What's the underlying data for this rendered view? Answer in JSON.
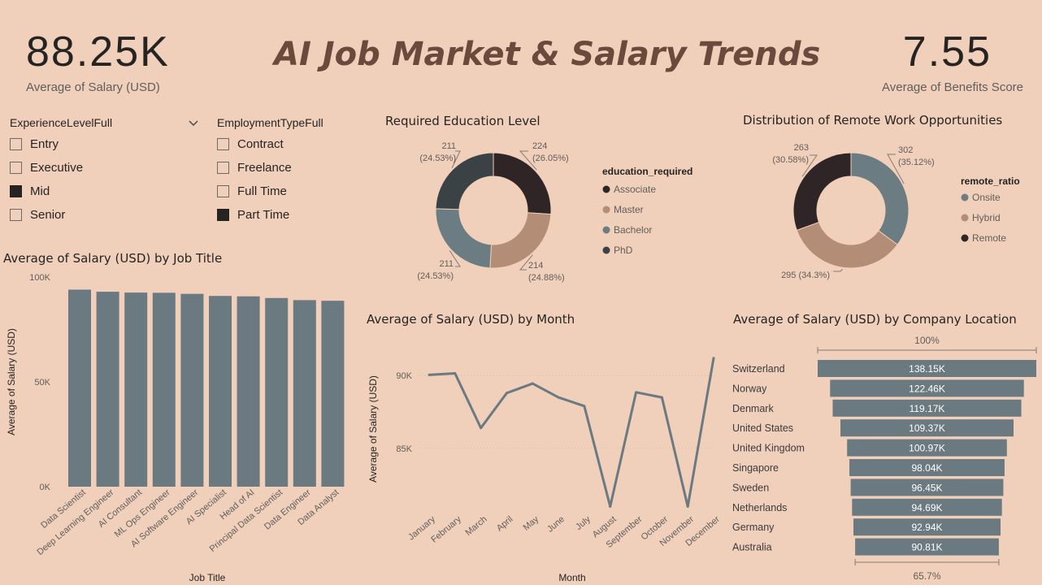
{
  "kpis": {
    "salary": {
      "value": "88.25K",
      "label": "Average of Salary (USD)"
    },
    "benefits": {
      "value": "7.55",
      "label": "Average of Benefits Score"
    }
  },
  "title": "AI Job Market & Salary Trends",
  "slicers": {
    "experience": {
      "title": "ExperienceLevelFull",
      "items": [
        {
          "label": "Entry",
          "checked": false
        },
        {
          "label": "Executive",
          "checked": false
        },
        {
          "label": "Mid",
          "checked": true
        },
        {
          "label": "Senior",
          "checked": false
        }
      ]
    },
    "employment": {
      "title": "EmploymentTypeFull",
      "items": [
        {
          "label": "Contract",
          "checked": false
        },
        {
          "label": "Freelance",
          "checked": false
        },
        {
          "label": "Full Time",
          "checked": false
        },
        {
          "label": "Part Time",
          "checked": true
        }
      ]
    }
  },
  "colors": {
    "background": "#f0cfbb",
    "dark": "#2f2526",
    "tan": "#b38d75",
    "slate": "#6b7c82",
    "charcoal": "#3b4245",
    "bar": "#6b7a80"
  },
  "chart_data": [
    {
      "id": "education",
      "type": "pie",
      "title": "Required Education Level",
      "legend_title": "education_required",
      "legend_position": "right",
      "categories": [
        "Associate",
        "Master",
        "Bachelor",
        "PhD"
      ],
      "values": [
        224,
        214,
        211,
        211
      ],
      "labels": [
        [
          "224",
          "(26.05%)"
        ],
        [
          "214",
          "(24.88%)"
        ],
        [
          "211",
          "(24.53%)"
        ],
        [
          "211",
          "(24.53%)"
        ]
      ]
    },
    {
      "id": "remote",
      "type": "pie",
      "title": "Distribution of Remote Work Opportunities",
      "legend_title": "remote_ratio",
      "legend_position": "right",
      "categories": [
        "Onsite",
        "Hybrid",
        "Remote"
      ],
      "values": [
        302,
        295,
        263
      ],
      "labels": [
        [
          "302",
          "(35.12%)"
        ],
        [
          "295 (34.3%)"
        ],
        [
          "263",
          "(30.58%)"
        ]
      ]
    },
    {
      "id": "jobtitle",
      "type": "bar",
      "title": "Average of Salary (USD) by Job Title",
      "xlabel": "Job Title",
      "ylabel": "Average of Salary (USD)",
      "ylim": [
        0,
        100000
      ],
      "yticks": [
        "0K",
        "50K",
        "100K"
      ],
      "categories": [
        "Data Scientist",
        "Deep Learning Engineer",
        "AI Consultant",
        "ML Ops Engineer",
        "AI Software Engineer",
        "AI Specialist",
        "Head of AI",
        "Principal Data Scientist",
        "Data Engineer",
        "Data Analyst"
      ],
      "values": [
        94000,
        93000,
        92600,
        92500,
        92000,
        91000,
        90800,
        90000,
        89000,
        88700
      ],
      "grid": false
    },
    {
      "id": "month",
      "type": "line",
      "title": "Average of Salary (USD) by Month",
      "xlabel": "Month",
      "ylabel": "Average of Salary (USD)",
      "ylim": [
        80800,
        91800
      ],
      "yticks": [
        "85K",
        "90K"
      ],
      "categories": [
        "January",
        "February",
        "March",
        "April",
        "May",
        "June",
        "July",
        "August",
        "September",
        "October",
        "November",
        "December"
      ],
      "values": [
        90050,
        90150,
        86400,
        88800,
        89450,
        88500,
        87900,
        81000,
        88850,
        88500,
        81000,
        91200
      ]
    },
    {
      "id": "location",
      "type": "bar",
      "orientation": "horizontal",
      "title": "Average of Salary (USD) by Company Location",
      "top_label": "100%",
      "bottom_label": "65.7%",
      "categories": [
        "Switzerland",
        "Norway",
        "Denmark",
        "United States",
        "United Kingdom",
        "Singapore",
        "Sweden",
        "Netherlands",
        "Germany",
        "Australia"
      ],
      "values": [
        138150,
        122460,
        119170,
        109370,
        100970,
        98040,
        96450,
        94690,
        92940,
        90810
      ],
      "labels": [
        "138.15K",
        "122.46K",
        "119.17K",
        "109.37K",
        "100.97K",
        "98.04K",
        "96.45K",
        "94.69K",
        "92.94K",
        "90.81K"
      ]
    }
  ]
}
